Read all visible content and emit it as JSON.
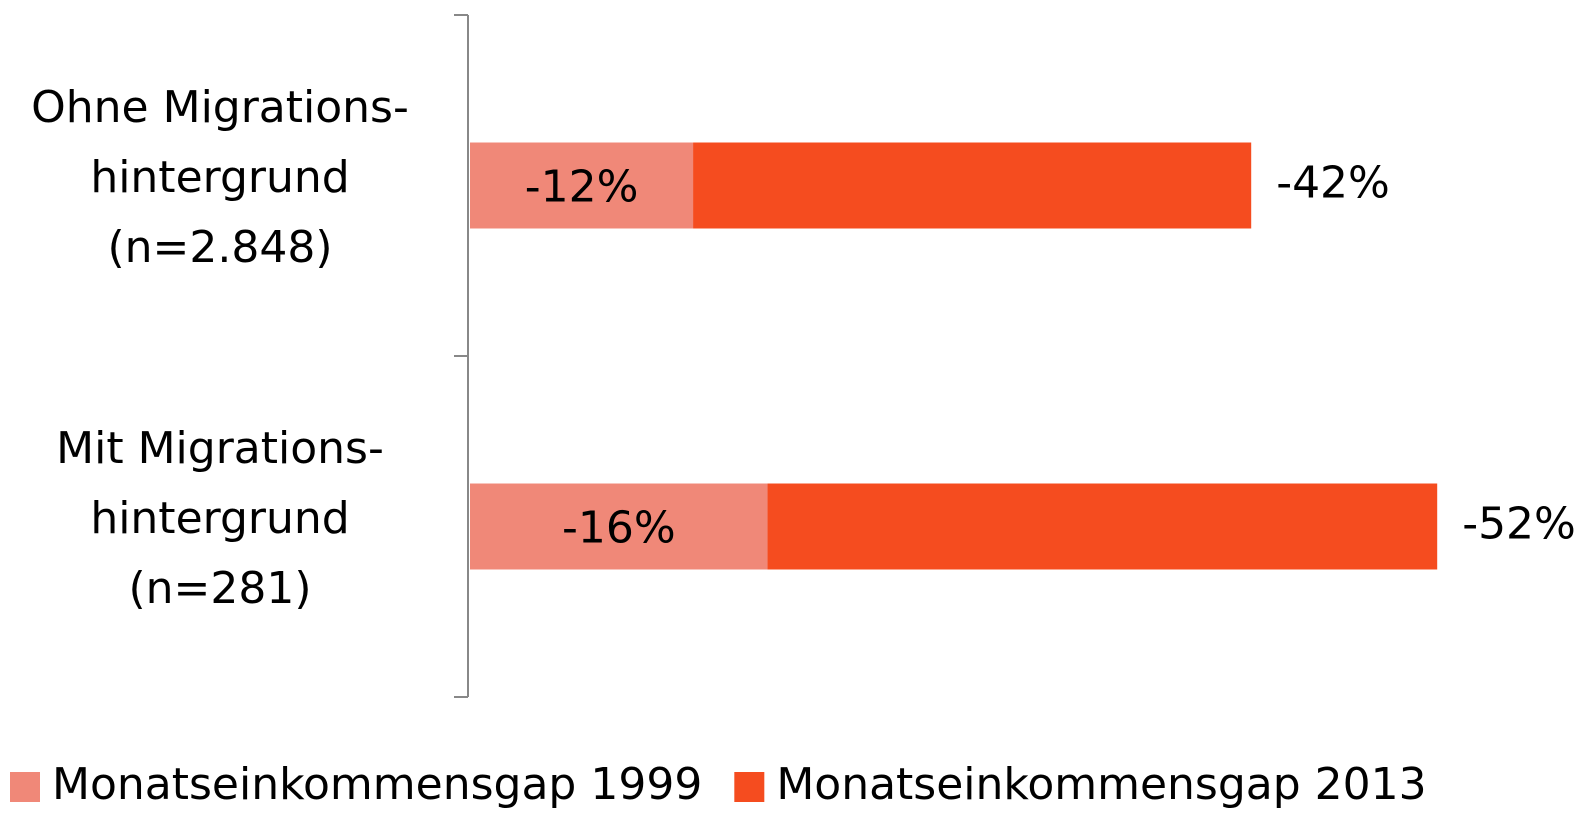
{
  "chart_data": {
    "type": "bar",
    "orientation": "horizontal",
    "overlap": true,
    "categories": [
      "Ohne Migrations-\nhintergrund\n(n=2.848)",
      "Mit Migrations-\nhintergrund\n(n=281)"
    ],
    "series": [
      {
        "name": "Monatseinkommensgap 1999",
        "color": "#f08878",
        "values": [
          -12,
          -16
        ],
        "value_labels": [
          "-12%",
          "-16%"
        ]
      },
      {
        "name": "Monatseinkommensgap 2013",
        "color": "#f54c1f",
        "values": [
          -42,
          -52
        ],
        "value_labels": [
          "-42%",
          "-52%"
        ]
      }
    ],
    "xlim": [
      0,
      -60
    ],
    "legend": "bottom"
  }
}
